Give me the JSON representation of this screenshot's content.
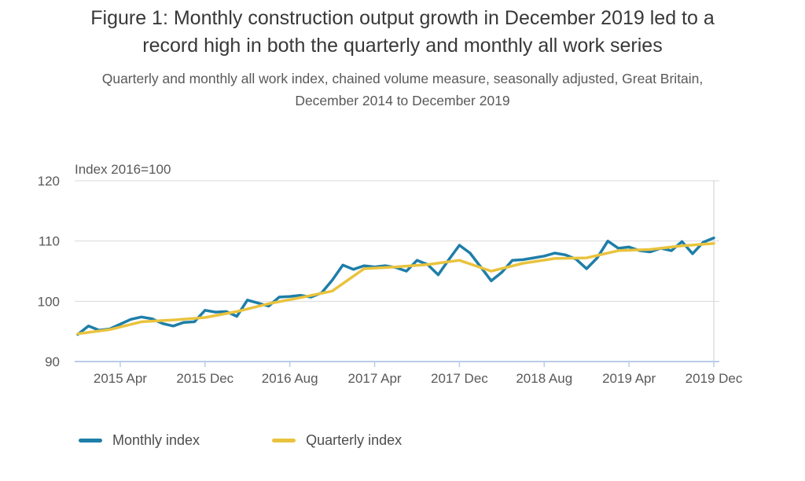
{
  "header": {
    "title": "Figure 1: Monthly construction output growth in December 2019 led to a record high in both the quarterly and monthly all work series",
    "subtitle": "Quarterly and monthly all work index, chained volume measure, seasonally adjusted, Great Britain, December 2014 to December 2019"
  },
  "chart_data": {
    "type": "line",
    "title": "Figure 1: Monthly construction output growth in December 2019 led to a record high in both the quarterly and monthly all work series",
    "subtitle": "Quarterly and monthly all work index, chained volume measure, seasonally adjusted, Great Britain, December 2014 to December 2019",
    "unit_label": "Index 2016=100",
    "xlabel": "",
    "ylabel": "Index 2016=100",
    "ylim": [
      90,
      120
    ],
    "y_ticks": [
      90,
      100,
      110,
      120
    ],
    "grid": "horizontal",
    "legend_position": "bottom-left",
    "x_start_label": "2014 Dec",
    "x_end_label": "2019 Dec",
    "x_total_months": 60,
    "x_ticks": [
      {
        "label": "2015 Apr",
        "month": 4
      },
      {
        "label": "2015 Dec",
        "month": 12
      },
      {
        "label": "2016 Aug",
        "month": 20
      },
      {
        "label": "2017 Apr",
        "month": 28
      },
      {
        "label": "2017 Dec",
        "month": 36
      },
      {
        "label": "2018 Aug",
        "month": 44
      },
      {
        "label": "2019 Apr",
        "month": 52
      },
      {
        "label": "2019 Dec",
        "month": 60
      }
    ],
    "marker_line_month": 60,
    "series": [
      {
        "name": "Monthly index",
        "color": "#1e7ea8",
        "start_month": 0,
        "step_months": 1,
        "values": [
          94.5,
          95.9,
          95.2,
          95.4,
          96.2,
          97.0,
          97.4,
          97.1,
          96.3,
          95.9,
          96.5,
          96.6,
          98.5,
          98.2,
          98.3,
          97.5,
          100.2,
          99.7,
          99.2,
          100.7,
          100.8,
          101.0,
          100.7,
          101.4,
          103.5,
          106.0,
          105.3,
          105.9,
          105.7,
          105.9,
          105.6,
          105.0,
          106.8,
          106.1,
          104.4,
          106.9,
          109.3,
          108.0,
          105.7,
          103.4,
          104.8,
          106.8,
          106.9,
          107.2,
          107.5,
          108.0,
          107.7,
          107.0,
          105.4,
          107.2,
          110.0,
          108.8,
          109.0,
          108.4,
          108.2,
          108.8,
          108.4,
          109.9,
          107.9,
          109.8,
          110.5
        ]
      },
      {
        "name": "Quarterly index",
        "color": "#e9c33e",
        "start_month": 0,
        "step_months": 3,
        "values": [
          94.6,
          95.3,
          96.6,
          96.9,
          97.3,
          98.3,
          99.6,
          100.6,
          101.7,
          105.4,
          105.7,
          106.1,
          106.8,
          105.0,
          106.3,
          107.1,
          107.2,
          108.4,
          108.6,
          109.2,
          109.6
        ]
      }
    ]
  },
  "colors": {
    "grid": "#d9d9d9",
    "axis": "#b9cce8",
    "marker_line": "#cccccc",
    "text_dark": "#383838",
    "text_gray": "#595959"
  }
}
